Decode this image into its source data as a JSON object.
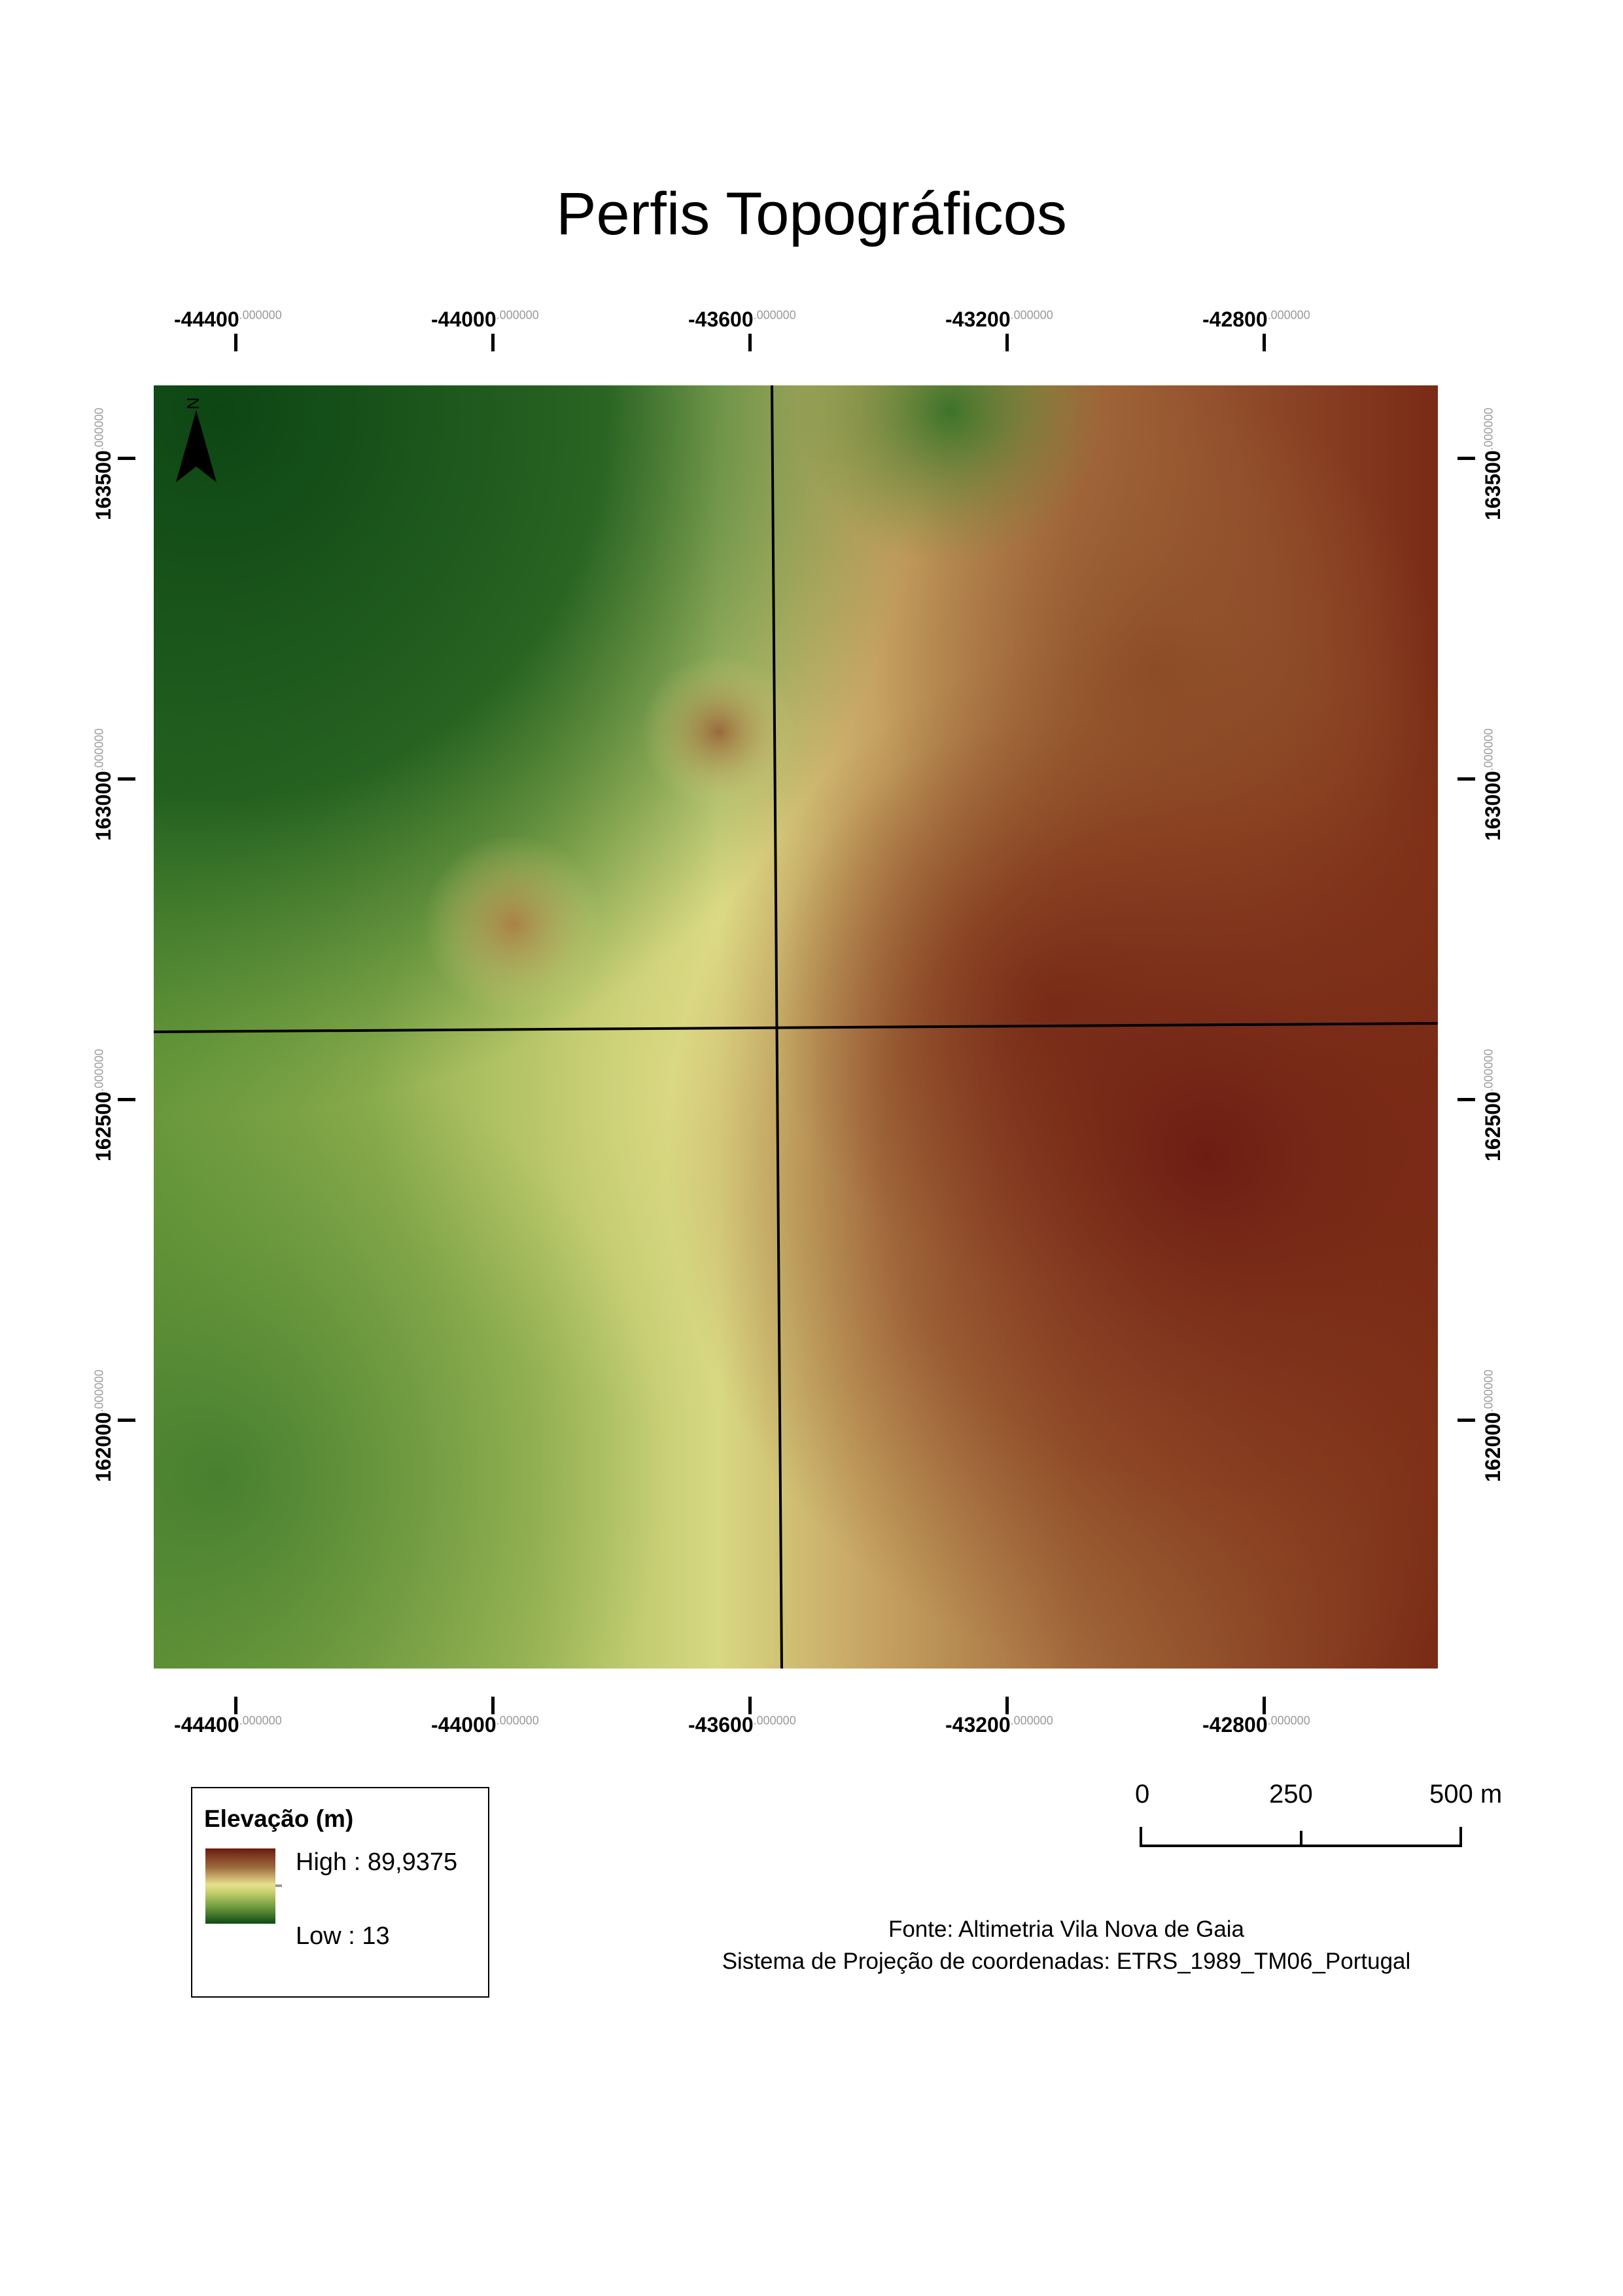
{
  "title": "Perfis Topográficos",
  "north_arrow": {
    "letter": "N",
    "icon": "north-arrow-icon"
  },
  "x_ticks": [
    {
      "main": "-44400",
      "dec": ".000000"
    },
    {
      "main": "-44000",
      "dec": ".000000"
    },
    {
      "main": "-43600",
      "dec": ".000000"
    },
    {
      "main": "-43200",
      "dec": ".000000"
    },
    {
      "main": "-42800",
      "dec": ".000000"
    }
  ],
  "y_ticks": [
    {
      "main": "163500",
      "dec": ".000000"
    },
    {
      "main": "163000",
      "dec": ".000000"
    },
    {
      "main": "162500",
      "dec": ".000000"
    },
    {
      "main": "162000",
      "dec": ".000000"
    }
  ],
  "legend": {
    "title": "Elevação (m)",
    "high": "High : 89,9375",
    "low": "Low : 13",
    "colors": {
      "high": "#6b1a0f",
      "mid": "#e8e08d",
      "low": "#0f4a15"
    }
  },
  "scale_bar": {
    "labels": [
      "0",
      "250",
      "500 m"
    ]
  },
  "source": {
    "line1": "Fonte: Altimetria Vila Nova de Gaia",
    "line2": "Sistema de Projeção de coordenadas: ETRS_1989_TM06_Portugal"
  }
}
